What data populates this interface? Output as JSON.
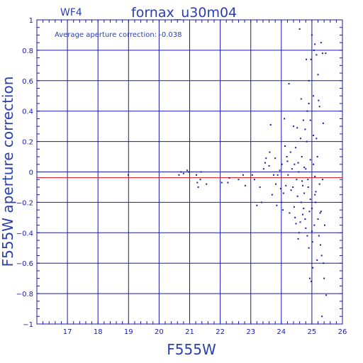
{
  "chart_data": {
    "type": "scatter",
    "title": "fornax_u30m04",
    "panel_label": "WF4",
    "annotation": "Average aperture correction:  -0.038",
    "xlabel": "F555W",
    "ylabel": "F555W aperture correction",
    "xlim": [
      16,
      26
    ],
    "ylim": [
      -1,
      1
    ],
    "x_ticks": [
      17,
      18,
      19,
      20,
      21,
      22,
      23,
      24,
      25,
      26
    ],
    "x_tick_labels": [
      "17",
      "18",
      "19",
      "20",
      "21",
      "22",
      "23",
      "24",
      "25",
      "26"
    ],
    "y_ticks": [
      1,
      0.8,
      0.6,
      0.4,
      0.2,
      0,
      -0.2,
      -0.4,
      -0.6,
      -0.8,
      -1
    ],
    "y_tick_labels": [
      "1",
      "0.8",
      "0.6",
      "0.4",
      "0.2",
      "0",
      "−0.2",
      "−0.4",
      "−0.6",
      "−0.8",
      "−1"
    ],
    "grid": true,
    "average_line": -0.038,
    "colors": {
      "axes": "#1a1aa6",
      "points": "#1a1aa6",
      "average_line": "#e01010",
      "title": "#2a3fb0"
    },
    "points": [
      [
        18.99,
        -0.02
      ],
      [
        20.65,
        -0.02
      ],
      [
        20.72,
        0.0
      ],
      [
        20.8,
        -0.01
      ],
      [
        20.92,
        0.01
      ],
      [
        20.97,
        0.0
      ],
      [
        21.22,
        -0.02
      ],
      [
        21.25,
        -0.07
      ],
      [
        21.28,
        -0.1
      ],
      [
        21.35,
        -0.05
      ],
      [
        21.37,
        0.0
      ],
      [
        21.55,
        -0.08
      ],
      [
        22.05,
        -0.07
      ],
      [
        22.25,
        -0.07
      ],
      [
        22.3,
        -0.04
      ],
      [
        22.6,
        -0.05
      ],
      [
        22.75,
        -0.02
      ],
      [
        22.82,
        -0.09
      ],
      [
        23.05,
        -0.02
      ],
      [
        23.12,
        -0.05
      ],
      [
        23.2,
        -0.22
      ],
      [
        23.3,
        -0.1
      ],
      [
        23.35,
        -0.2
      ],
      [
        23.42,
        0.02
      ],
      [
        23.47,
        0.06
      ],
      [
        23.5,
        0.09
      ],
      [
        23.6,
        0.04
      ],
      [
        23.62,
        0.13
      ],
      [
        23.65,
        0.31
      ],
      [
        23.7,
        -0.15
      ],
      [
        23.75,
        -0.02
      ],
      [
        23.8,
        0.09
      ],
      [
        23.82,
        -0.08
      ],
      [
        23.85,
        -0.22
      ],
      [
        23.88,
        -0.02
      ],
      [
        23.95,
        0.01
      ],
      [
        23.98,
        -0.11
      ],
      [
        24.0,
        -0.2
      ],
      [
        24.02,
        0.05
      ],
      [
        24.05,
        -0.25
      ],
      [
        24.07,
        -0.14
      ],
      [
        24.1,
        0.35
      ],
      [
        24.12,
        0.17
      ],
      [
        24.15,
        -0.09
      ],
      [
        24.18,
        0.1
      ],
      [
        24.2,
        0.07
      ],
      [
        24.22,
        -0.02
      ],
      [
        24.25,
        0.58
      ],
      [
        24.27,
        -0.27
      ],
      [
        24.3,
        0.13
      ],
      [
        24.32,
        -0.12
      ],
      [
        24.35,
        0.02
      ],
      [
        24.38,
        -0.1
      ],
      [
        24.4,
        0.3
      ],
      [
        24.42,
        -0.23
      ],
      [
        24.45,
        -0.3
      ],
      [
        24.47,
        0.16
      ],
      [
        24.5,
        -0.05
      ],
      [
        24.52,
        0.29
      ],
      [
        24.55,
        0.06
      ],
      [
        24.57,
        0.0
      ],
      [
        24.6,
        0.94
      ],
      [
        24.62,
        -0.33
      ],
      [
        24.65,
        -0.2
      ],
      [
        24.67,
        0.1
      ],
      [
        24.7,
        -0.09
      ],
      [
        24.72,
        0.34
      ],
      [
        24.75,
        -0.14
      ],
      [
        24.78,
        0.28
      ],
      [
        24.8,
        -0.37
      ],
      [
        24.82,
        0.74
      ],
      [
        24.85,
        0.4
      ],
      [
        24.87,
        -0.05
      ],
      [
        24.9,
        0.6
      ],
      [
        24.92,
        -0.26
      ],
      [
        24.95,
        0.08
      ],
      [
        24.97,
        0.74
      ],
      [
        25.0,
        0.9
      ],
      [
        25.02,
        -0.46
      ],
      [
        25.05,
        0.5
      ],
      [
        25.07,
        0.8
      ],
      [
        25.1,
        0.84
      ],
      [
        25.12,
        -0.2
      ],
      [
        25.15,
        0.77
      ],
      [
        25.17,
        -0.58
      ],
      [
        25.2,
        0.64
      ],
      [
        25.22,
        0.47
      ],
      [
        25.25,
        0.43
      ],
      [
        25.27,
        -0.27
      ],
      [
        25.3,
        0.85
      ],
      [
        25.32,
        -0.55
      ],
      [
        25.35,
        0.78
      ],
      [
        25.37,
        0.32
      ],
      [
        25.4,
        -0.7
      ],
      [
        25.42,
        -0.35
      ],
      [
        25.45,
        0.78
      ],
      [
        25.47,
        -0.81
      ],
      [
        24.93,
        -0.7
      ],
      [
        24.98,
        -0.72
      ],
      [
        25.03,
        -0.63
      ],
      [
        25.08,
        -0.35
      ],
      [
        25.13,
        -0.13
      ],
      [
        25.18,
        0.1
      ],
      [
        25.23,
        -0.42
      ],
      [
        25.28,
        -0.48
      ],
      [
        25.33,
        -0.95
      ],
      [
        25.38,
        -0.6
      ],
      [
        24.88,
        -0.1
      ],
      [
        24.83,
        0.2
      ],
      [
        24.78,
        -0.31
      ],
      [
        24.73,
        -0.24
      ],
      [
        24.68,
        -0.06
      ],
      [
        24.63,
        0.22
      ],
      [
        24.58,
        -0.4
      ],
      [
        24.53,
        -0.16
      ],
      [
        24.48,
        -0.34
      ],
      [
        24.43,
        0.05
      ],
      [
        24.9,
        -0.5
      ],
      [
        25.0,
        -0.39
      ],
      [
        25.05,
        0.05
      ],
      [
        25.1,
        -0.03
      ],
      [
        25.15,
        0.22
      ],
      [
        25.2,
        -0.31
      ],
      [
        25.25,
        -0.08
      ],
      [
        25.3,
        -0.26
      ],
      [
        25.35,
        -0.05
      ],
      [
        24.95,
        -0.18
      ],
      [
        24.85,
        -0.42
      ],
      [
        24.75,
        0.03
      ],
      [
        24.65,
        0.48
      ],
      [
        24.55,
        -0.44
      ],
      [
        24.95,
        0.34
      ],
      [
        25.0,
        -0.24
      ],
      [
        25.05,
        0.24
      ],
      [
        25.1,
        -0.15
      ],
      [
        24.9,
        0.45
      ],
      [
        24.8,
        0.02
      ],
      [
        24.7,
        -0.28
      ]
    ]
  }
}
